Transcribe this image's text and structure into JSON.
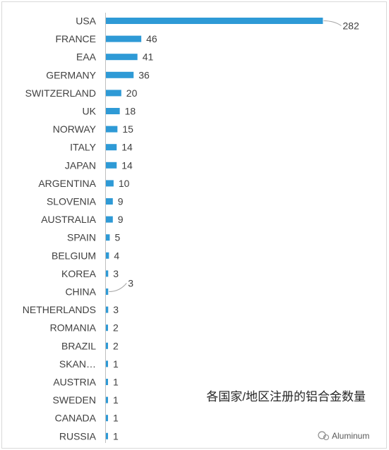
{
  "chart_data": {
    "type": "bar",
    "orientation": "horizontal",
    "categories": [
      "USA",
      "FRANCE",
      "EAA",
      "GERMANY",
      "SWITZERLAND",
      "UK",
      "NORWAY",
      "ITALY",
      "JAPAN",
      "ARGENTINA",
      "SLOVENIA",
      "AUSTRALIA",
      "SPAIN",
      "BELGIUM",
      "KOREA",
      "CHINA",
      "NETHERLANDS",
      "ROMANIA",
      "BRAZIL",
      "SKAN…",
      "AUSTRIA",
      "SWEDEN",
      "CANADA",
      "RUSSIA"
    ],
    "values": [
      282,
      46,
      41,
      36,
      20,
      18,
      15,
      14,
      14,
      10,
      9,
      9,
      5,
      4,
      3,
      3,
      3,
      2,
      2,
      1,
      1,
      1,
      1,
      1
    ],
    "labels": [
      "282",
      "46",
      "41",
      "36",
      "20",
      "18",
      "15",
      "14",
      "14",
      "10",
      "9",
      "9",
      "5",
      "4",
      "3",
      "3",
      "3",
      "2",
      "2",
      "1",
      "1",
      "1",
      "1",
      "1"
    ],
    "callout_labels": [
      "USA",
      "CHINA"
    ],
    "title": "",
    "annotation": "各国家/地区注册的铝合金数量",
    "xlabel": "",
    "ylabel": "",
    "xlim": [
      0,
      300
    ],
    "grid": false,
    "bar_color": "#2E9AD6"
  },
  "watermark": "Aluminum"
}
